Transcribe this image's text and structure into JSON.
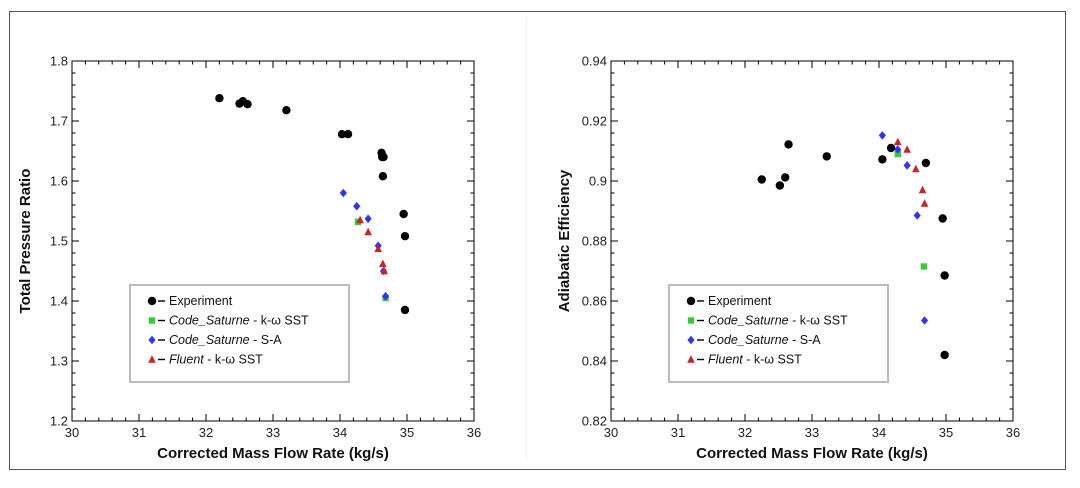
{
  "colors": {
    "experiment": "#000000",
    "code_saturne_kw": "#33cc33",
    "code_saturne_sa": "#3333ff",
    "fluent": "#cc2222"
  },
  "chart_data": [
    {
      "type": "scatter",
      "title": "",
      "xlabel": "Corrected Mass Flow Rate (kg/s)",
      "ylabel": "Total Pressure Ratio",
      "xlim": [
        30,
        36
      ],
      "ylim": [
        1.2,
        1.8
      ],
      "xticks": [
        "30",
        "31",
        "32",
        "33",
        "34",
        "35",
        "36"
      ],
      "yticks": [
        "1.2",
        "1.3",
        "1.4",
        "1.5",
        "1.6",
        "1.7",
        "1.8"
      ],
      "legend_position": "bottom-left",
      "series": [
        {
          "name": "Experiment",
          "legend_em": "",
          "legend_rest": "Experiment",
          "marker": "circle",
          "color_key": "experiment",
          "x": [
            32.2,
            32.5,
            32.55,
            32.62,
            33.2,
            34.03,
            34.12,
            34.62,
            34.63,
            34.64,
            34.65,
            34.95,
            34.97,
            34.97
          ],
          "y": [
            1.738,
            1.729,
            1.733,
            1.728,
            1.718,
            1.678,
            1.678,
            1.647,
            1.64,
            1.608,
            1.64,
            1.545,
            1.508,
            1.385
          ]
        },
        {
          "name": "Code_Saturne - k-ω SST",
          "legend_em": "Code_Saturne",
          "legend_rest": " - k-ω SST",
          "marker": "square",
          "color_key": "code_saturne_kw",
          "x": [
            34.27,
            34.68
          ],
          "y": [
            1.532,
            1.405
          ]
        },
        {
          "name": "Code_Saturne - S-A",
          "legend_em": "Code_Saturne",
          "legend_rest": " - S-A",
          "marker": "diamond",
          "color_key": "code_saturne_sa",
          "x": [
            34.05,
            34.25,
            34.42,
            34.57,
            34.65,
            34.68
          ],
          "y": [
            1.58,
            1.558,
            1.537,
            1.492,
            1.45,
            1.408
          ]
        },
        {
          "name": "Fluent - k-ω SST",
          "legend_em": "Fluent",
          "legend_rest": " - k-ω SST",
          "marker": "triangle",
          "color_key": "fluent",
          "x": [
            34.3,
            34.42,
            34.57,
            34.64,
            34.66
          ],
          "y": [
            1.535,
            1.515,
            1.487,
            1.462,
            1.45
          ]
        }
      ]
    },
    {
      "type": "scatter",
      "title": "",
      "xlabel": "Corrected Mass Flow Rate (kg/s)",
      "ylabel": "Adiabatic Efficiency",
      "xlim": [
        30,
        36
      ],
      "ylim": [
        0.82,
        0.94
      ],
      "xticks": [
        "30",
        "31",
        "32",
        "33",
        "34",
        "35",
        "36"
      ],
      "yticks": [
        "0.82",
        "0.84",
        "0.86",
        "0.88",
        "0.9",
        "0.92",
        "0.94"
      ],
      "legend_position": "bottom-left",
      "series": [
        {
          "name": "Experiment",
          "legend_em": "",
          "legend_rest": "Experiment",
          "marker": "circle",
          "color_key": "experiment",
          "x": [
            32.25,
            32.52,
            32.6,
            32.65,
            33.22,
            34.05,
            34.18,
            34.7,
            34.95,
            34.98,
            34.98
          ],
          "y": [
            0.9005,
            0.8985,
            0.9012,
            0.9122,
            0.9082,
            0.9072,
            0.911,
            0.906,
            0.8875,
            0.8685,
            0.842
          ]
        },
        {
          "name": "Code_Saturne - k-ω SST",
          "legend_em": "Code_Saturne",
          "legend_rest": " - k-ω SST",
          "marker": "square",
          "color_key": "code_saturne_kw",
          "x": [
            34.28,
            34.67
          ],
          "y": [
            0.909,
            0.8715
          ]
        },
        {
          "name": "Code_Saturne - S-A",
          "legend_em": "Code_Saturne",
          "legend_rest": " - S-A",
          "marker": "diamond",
          "color_key": "code_saturne_sa",
          "x": [
            34.05,
            34.28,
            34.42,
            34.57,
            34.68
          ],
          "y": [
            0.9152,
            0.9105,
            0.9052,
            0.8885,
            0.8535
          ]
        },
        {
          "name": "Fluent - k-ω SST",
          "legend_em": "Fluent",
          "legend_rest": " - k-ω SST",
          "marker": "triangle",
          "color_key": "fluent",
          "x": [
            34.28,
            34.42,
            34.55,
            34.65,
            34.68
          ],
          "y": [
            0.913,
            0.9105,
            0.904,
            0.897,
            0.8925
          ]
        }
      ]
    }
  ]
}
